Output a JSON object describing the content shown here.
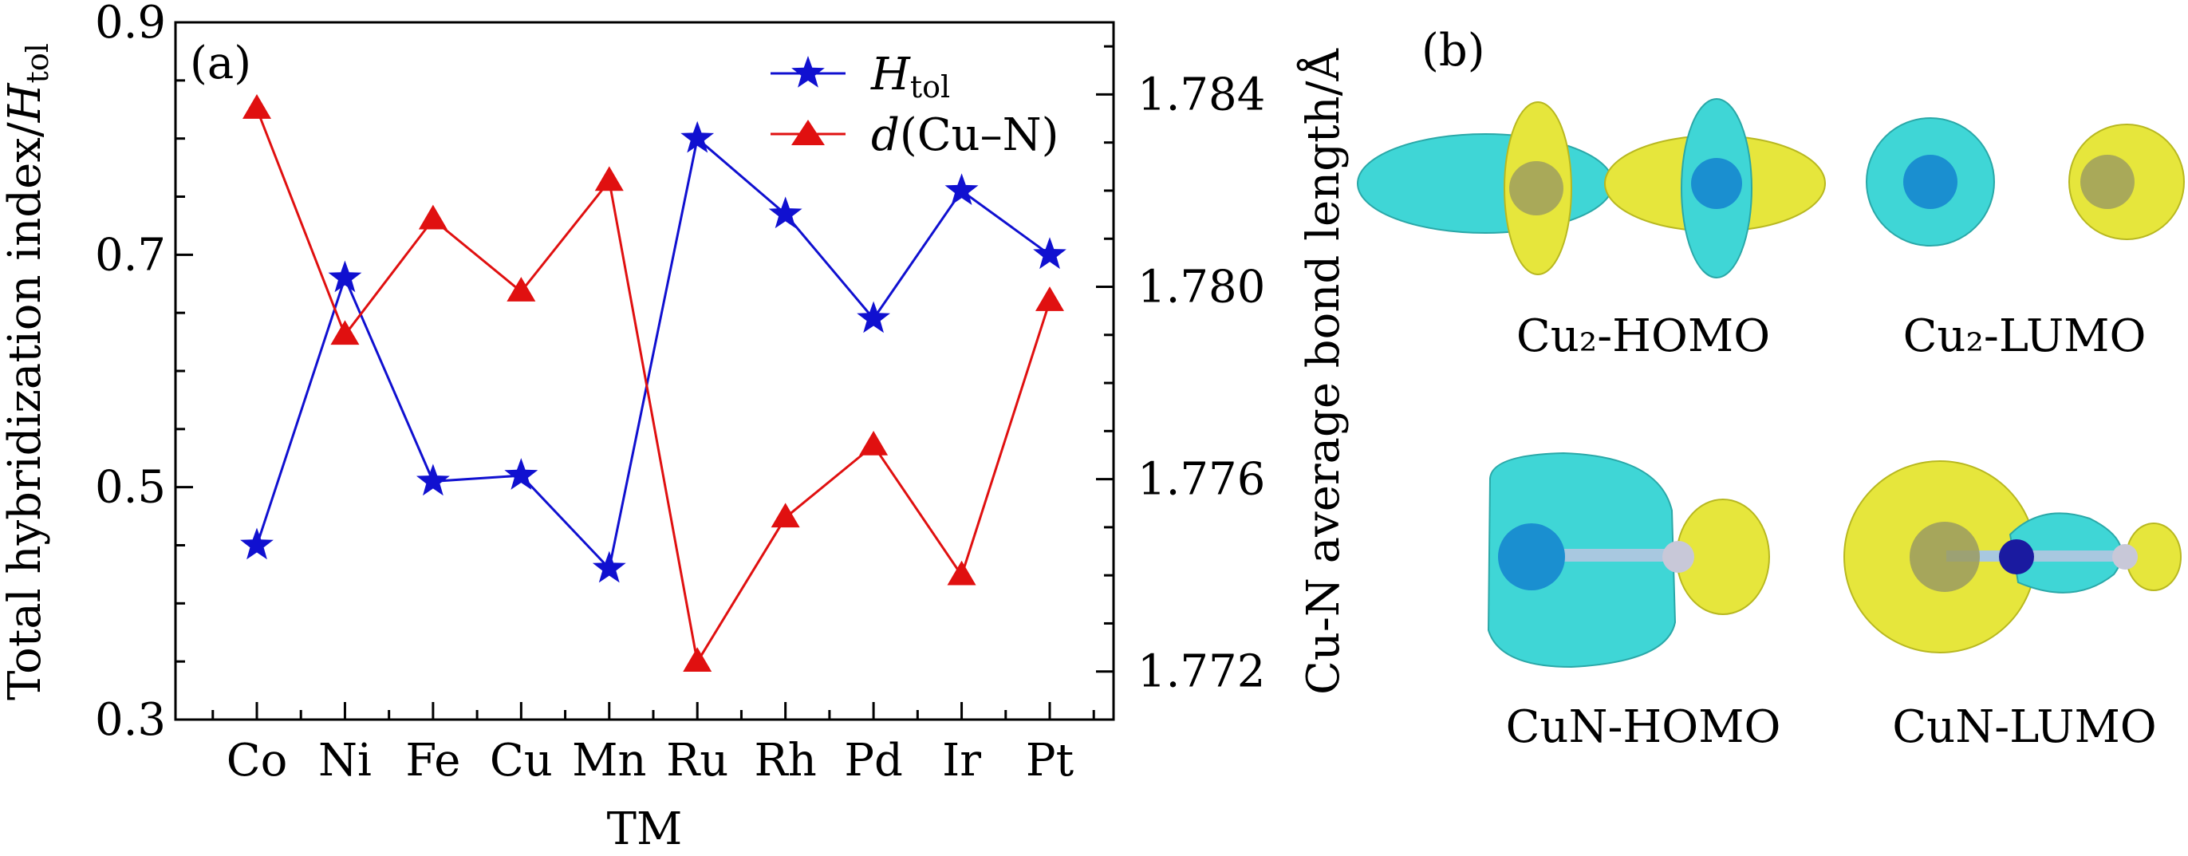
{
  "chart_data": {
    "type": "line",
    "panel_label": "(a)",
    "xlabel": "TM",
    "categories": [
      "Co",
      "Ni",
      "Fe",
      "Cu",
      "Mn",
      "Ru",
      "Rh",
      "Pd",
      "Ir",
      "Pt"
    ],
    "left_axis": {
      "label_main": "Total hybridization index/",
      "label_var": "H",
      "label_sub": "tol",
      "ylim": [
        0.3,
        0.9
      ],
      "ticks": [
        "0.3",
        "0.5",
        "0.7",
        "0.9"
      ]
    },
    "right_axis": {
      "label": "Cu-N average bond length/Å",
      "ylim": [
        1.771,
        1.7855
      ],
      "ticks": [
        "1.772",
        "1.776",
        "1.780",
        "1.784"
      ]
    },
    "series": [
      {
        "name_var": "H",
        "name_sub": "tol",
        "axis": "left",
        "color": "#1010d0",
        "marker": "star",
        "values": [
          0.45,
          0.68,
          0.505,
          0.51,
          0.43,
          0.8,
          0.735,
          0.645,
          0.755,
          0.7
        ]
      },
      {
        "name_var": "d",
        "name_rest": "(Cu–N)",
        "axis": "right",
        "color": "#e01010",
        "marker": "triangle",
        "values": [
          1.7837,
          1.779,
          1.7814,
          1.7799,
          1.7822,
          1.7722,
          1.7752,
          1.7767,
          1.774,
          1.7797
        ]
      }
    ],
    "legend_position": "top-right",
    "grid": false
  },
  "panel_b": {
    "label": "(b)",
    "orbitals": [
      {
        "label": "Cu₂-HOMO"
      },
      {
        "label": "Cu₂-LUMO"
      },
      {
        "label": "CuN-HOMO"
      },
      {
        "label": "CuN-LUMO"
      }
    ],
    "colors": {
      "cyan": "#3fd6d6",
      "yellow": "#e6e63c",
      "atom_blue": "#1a8fd0",
      "atom_dark": "#1a1aa0"
    }
  }
}
